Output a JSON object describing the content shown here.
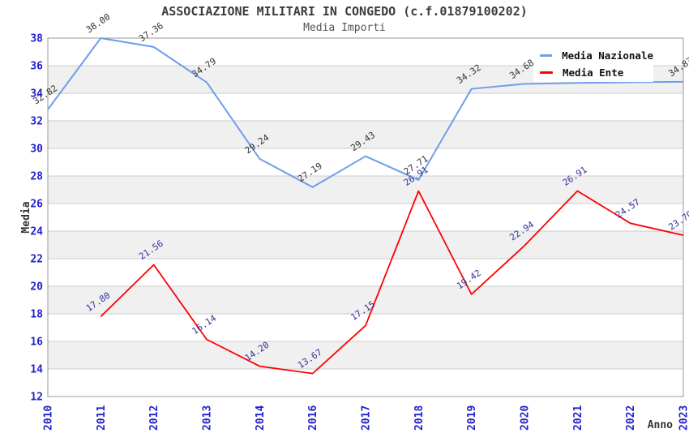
{
  "header": {
    "title": "ASSOCIAZIONE MILITARI IN CONGEDO (c.f.01879100202)",
    "subtitle": "Media Importi"
  },
  "legend": {
    "items": [
      {
        "label": "Media Nazionale",
        "color": "#6d9eeb"
      },
      {
        "label": "Media Ente",
        "color": "#ff0000"
      }
    ]
  },
  "colors": {
    "tick_label": "#2222cc",
    "band_gray": "#f0f0f0",
    "band_white": "#ffffff",
    "gridline": "#cccccc",
    "plot_border": "#999999",
    "national_line": "#6d9eeb",
    "ente_line": "#ff0000",
    "national_point_label": "#333333",
    "ente_point_label": "#333399"
  },
  "chart_data": {
    "type": "line",
    "title": "ASSOCIAZIONE MILITARI IN CONGEDO (c.f.01879100202)",
    "subtitle": "Media Importi",
    "xlabel": "Anno",
    "ylabel": "Media",
    "ylim": [
      12,
      38
    ],
    "ytick_step": 2,
    "yticks": [
      38,
      36,
      34,
      32,
      30,
      28,
      26,
      24,
      22,
      20,
      18,
      16,
      14,
      12
    ],
    "grid": "alternating-bands",
    "legend_position": "top-right-inside",
    "categories": [
      "2010",
      "2011",
      "2012",
      "2013",
      "2014",
      "2016",
      "2017",
      "2018",
      "2019",
      "2020",
      "2021",
      "2022",
      "2023"
    ],
    "series": [
      {
        "name": "Media Nazionale",
        "color": "#6d9eeb",
        "label_color": "#333333",
        "values": [
          32.82,
          38.0,
          37.36,
          34.79,
          29.24,
          27.19,
          29.43,
          27.71,
          34.32,
          34.68,
          34.75,
          34.8,
          34.83
        ],
        "labels": [
          "32.82",
          "38.00",
          "37.36",
          "34.79",
          "29.24",
          "27.19",
          "29.43",
          "27.71",
          "34.32",
          "34.68",
          "",
          "",
          "34.83"
        ]
      },
      {
        "name": "Media Ente",
        "color": "#ff0000",
        "label_color": "#333399",
        "values": [
          null,
          17.8,
          21.56,
          16.14,
          14.2,
          13.67,
          17.15,
          26.91,
          19.42,
          22.94,
          26.91,
          24.57,
          23.7
        ],
        "labels": [
          "",
          "17.80",
          "21.56",
          "16.14",
          "14.20",
          "13.67",
          "17.15",
          "26.91",
          "19.42",
          "22.94",
          "26.91",
          "24.57",
          "23.70"
        ]
      }
    ]
  }
}
